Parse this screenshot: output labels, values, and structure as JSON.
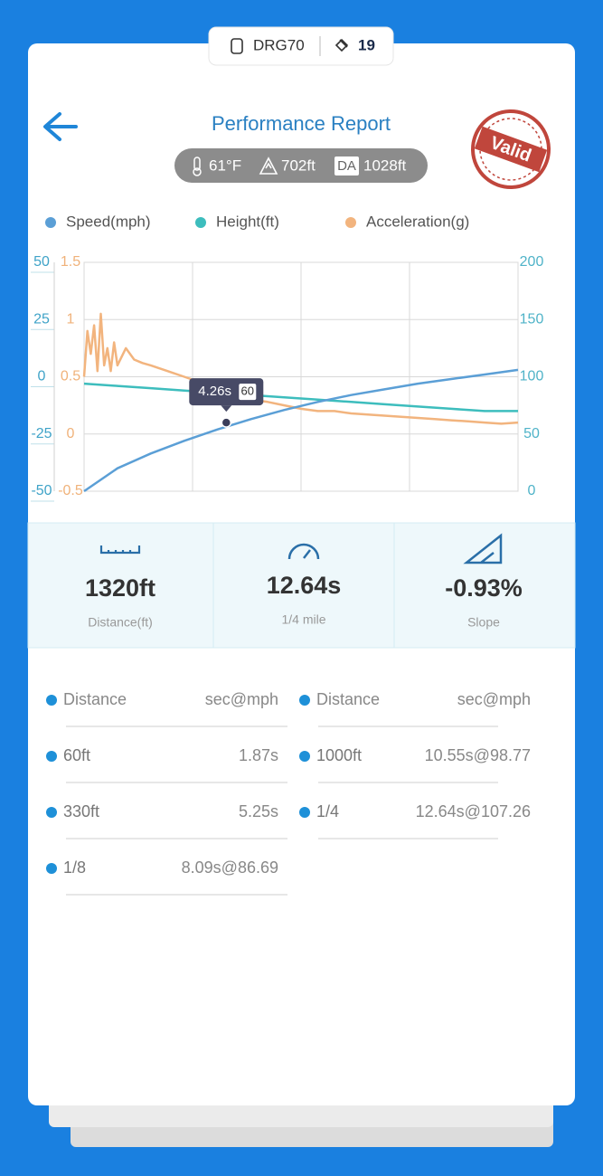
{
  "top_badge": {
    "device": "DRG70",
    "count": "19"
  },
  "header": {
    "title": "Performance Report",
    "stamp": "Valid"
  },
  "conditions": {
    "temperature": "61°F",
    "altitude": "702ft",
    "da_label": "DA",
    "density_altitude": "1028ft"
  },
  "chart_data": {
    "type": "line",
    "xlim": [
      0,
      13
    ],
    "ylim": [
      -50,
      50
    ],
    "yticks": [
      -50,
      -25,
      0,
      25,
      50
    ],
    "y2lim": [
      0,
      200
    ],
    "y2ticks": [
      0,
      50,
      100,
      150,
      200
    ],
    "y3lim": [
      -0.5,
      1.5
    ],
    "y3ticks": [
      -0.5,
      0,
      0.5,
      1,
      1.5
    ],
    "grid": true,
    "series": [
      {
        "name": "Speed(mph)",
        "color": "#5b9fd6",
        "axis": "y2",
        "x": [
          0,
          1,
          2,
          3,
          4,
          5,
          6,
          7,
          8,
          9,
          10,
          11,
          12,
          13
        ],
        "values": [
          0,
          20,
          33,
          44,
          54,
          63,
          71,
          78,
          84,
          89,
          94,
          98,
          102,
          106
        ]
      },
      {
        "name": "Height(ft)",
        "color": "#3dbdbd",
        "axis": "y",
        "x": [
          0,
          1,
          2,
          3,
          4,
          5,
          6,
          7,
          8,
          9,
          10,
          11,
          12,
          13
        ],
        "values": [
          -3,
          -4,
          -5,
          -6,
          -7,
          -8,
          -9,
          -10,
          -11,
          -12,
          -13,
          -14,
          -15,
          -15
        ]
      },
      {
        "name": "Acceleration(g)",
        "color": "#f2b47e",
        "axis": "y3",
        "x": [
          0,
          0.1,
          0.2,
          0.3,
          0.4,
          0.5,
          0.6,
          0.7,
          0.8,
          0.9,
          1,
          1.25,
          1.5,
          1.75,
          2,
          2.5,
          3,
          3.5,
          4,
          4.5,
          5,
          5.5,
          6,
          6.5,
          7,
          7.5,
          8,
          8.5,
          9,
          9.5,
          10,
          10.5,
          11,
          11.5,
          12,
          12.5,
          13
        ],
        "values": [
          0.5,
          0.9,
          0.7,
          0.95,
          0.55,
          1.05,
          0.6,
          0.75,
          0.55,
          0.8,
          0.6,
          0.75,
          0.65,
          0.62,
          0.6,
          0.55,
          0.5,
          0.45,
          0.4,
          0.35,
          0.3,
          0.28,
          0.25,
          0.22,
          0.2,
          0.2,
          0.18,
          0.17,
          0.16,
          0.15,
          0.14,
          0.13,
          0.12,
          0.11,
          0.1,
          0.09,
          0.1
        ]
      }
    ],
    "tooltip": {
      "x": 4.26,
      "label": "4.26s",
      "value": 60
    }
  },
  "stats": [
    {
      "value": "1320ft",
      "label": "Distance(ft)"
    },
    {
      "value": "12.64s",
      "label": "1/4 mile"
    },
    {
      "value": "-0.93%",
      "label": "Slope"
    }
  ],
  "table": {
    "columns": [
      "Distance",
      "sec@mph"
    ],
    "left": [
      [
        "60ft",
        "1.87s"
      ],
      [
        "330ft",
        "5.25s"
      ],
      [
        "1/8",
        "8.09s@86.69"
      ]
    ],
    "right": [
      [
        "1000ft",
        "10.55s@98.77"
      ],
      [
        "1/4",
        "12.64s@107.26"
      ]
    ]
  }
}
